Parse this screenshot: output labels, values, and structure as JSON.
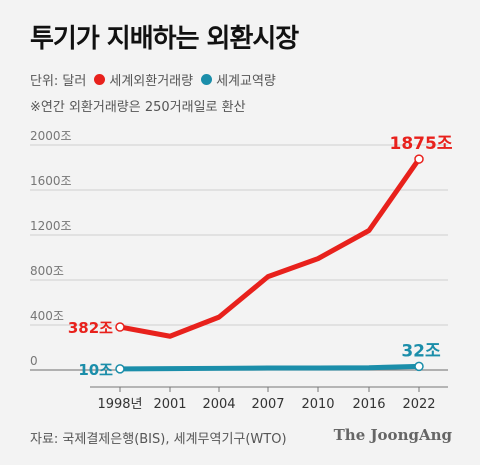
{
  "title": "투기가 지배하는 외환시장",
  "legend": {
    "unit": "단위: 달러",
    "items": [
      {
        "label": "세계외환거래량",
        "color": "#e8211c"
      },
      {
        "label": "세계교역량",
        "color": "#1b8eaa"
      }
    ]
  },
  "note": "※연간 외환거래량은 250거래일로 환산",
  "source": "자료: 국제결제은행(BIS), 세계무역기구(WTO)",
  "brand": "The JoongAng",
  "chart_data": {
    "type": "line",
    "x": [
      0,
      1,
      2,
      3,
      4,
      5,
      6
    ],
    "xtick_labels": [
      "1998년",
      "2001",
      "2004",
      "2007",
      "2010",
      "2016",
      "2022"
    ],
    "ytick_values": [
      0,
      400,
      800,
      1200,
      1600,
      2000
    ],
    "ytick_labels": [
      "0",
      "400조",
      "800조",
      "1200조",
      "1600조",
      "2000조"
    ],
    "ylim": [
      0,
      2000
    ],
    "grid": true,
    "series": [
      {
        "name": "세계외환거래량",
        "color": "#e8211c",
        "values": [
          382,
          300,
          470,
          830,
          990,
          1240,
          1875
        ],
        "labels": {
          "start": "382조",
          "end": "1875조"
        }
      },
      {
        "name": "세계교역량",
        "color": "#1b8eaa",
        "values": [
          10,
          12,
          15,
          18,
          18,
          20,
          32
        ],
        "labels": {
          "start": "10조",
          "end": "32조"
        }
      }
    ]
  }
}
